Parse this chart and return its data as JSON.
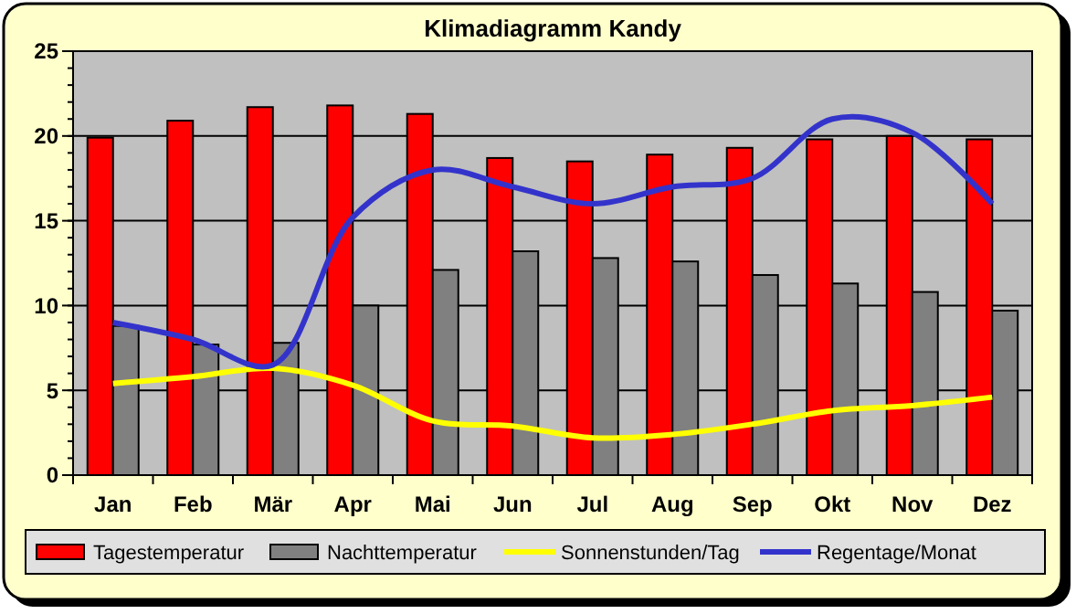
{
  "chart_data": {
    "type": "bar",
    "title": "Klimadiagramm Kandy",
    "categories": [
      "Jan",
      "Feb",
      "Mär",
      "Apr",
      "Mai",
      "Jun",
      "Jul",
      "Aug",
      "Sep",
      "Okt",
      "Nov",
      "Dez"
    ],
    "series": [
      {
        "name": "Tagestemperatur",
        "color": "#ff0000",
        "values": [
          19.9,
          20.9,
          21.7,
          21.8,
          21.3,
          18.7,
          18.5,
          18.9,
          19.3,
          19.8,
          20.0,
          19.8
        ]
      },
      {
        "name": "Nachttemperatur",
        "color": "#808080",
        "values": [
          8.8,
          7.7,
          7.8,
          10.0,
          12.1,
          13.2,
          12.8,
          12.6,
          11.8,
          11.3,
          10.8,
          9.7
        ]
      },
      {
        "name": "Sonnenstunden/Tag",
        "type": "line",
        "color": "#ffff00",
        "values": [
          5.4,
          5.8,
          6.3,
          5.3,
          3.2,
          2.9,
          2.2,
          2.4,
          3.0,
          3.8,
          4.1,
          4.6
        ]
      },
      {
        "name": "Regentage/Monat",
        "type": "line",
        "color": "#3333cc",
        "values": [
          9.0,
          8.0,
          6.5,
          15.2,
          18.0,
          17.0,
          16.0,
          17.0,
          17.5,
          21.0,
          20.2,
          16.0
        ]
      }
    ],
    "ylim": [
      0,
      25
    ],
    "yticks": [
      0,
      5,
      10,
      15,
      20,
      25
    ],
    "grid": "y",
    "legend": "bottom",
    "marker": "none",
    "line_style": "solid"
  }
}
